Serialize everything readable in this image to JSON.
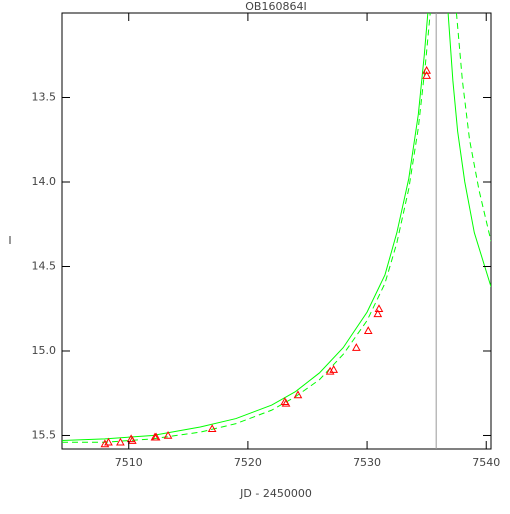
{
  "chart_data": {
    "type": "line",
    "title": "OB160864I",
    "xlabel": "JD - 2450000",
    "ylabel": "I",
    "xlim": [
      7504.4,
      7540.4
    ],
    "ylim": [
      15.58,
      13.0
    ],
    "xticks": [
      7510,
      7520,
      7530,
      7540
    ],
    "yticks": [
      13.5,
      {
        "value": 14.0,
        "label": "14.0"
      },
      14.5,
      {
        "value": 15.0,
        "label": "15.0"
      },
      15.5
    ],
    "vline": {
      "x": 7535.8,
      "color": "#999999"
    },
    "series": [
      {
        "color": "#00ff00",
        "style": "solid",
        "x": [
          7504.4,
          7508,
          7512,
          7516,
          7519,
          7522,
          7524,
          7526,
          7528,
          7530,
          7531.5,
          7532.5,
          7533.5,
          7534.3,
          7534.8,
          7535.1,
          null,
          7536.8,
          7537.2,
          7537.6,
          7538.2,
          7539.0,
          7540.4
        ],
        "values": [
          15.53,
          15.52,
          15.5,
          15.45,
          15.4,
          15.32,
          15.24,
          15.13,
          14.98,
          14.77,
          14.55,
          14.3,
          13.98,
          13.6,
          13.25,
          13.0,
          null,
          13.0,
          13.4,
          13.7,
          14.0,
          14.3,
          14.62
        ]
      },
      {
        "color": "#00ff00",
        "style": "dashed",
        "x": [
          7504.4,
          7508,
          7512,
          7516,
          7519,
          7522,
          7524,
          7526,
          7528,
          7530,
          7531.5,
          7532.5,
          7533.5,
          7534.3,
          7534.9,
          7535.3,
          null,
          7537.5,
          7538.0,
          7538.6,
          7539.4,
          7540.4
        ],
        "values": [
          15.54,
          15.54,
          15.52,
          15.48,
          15.43,
          15.35,
          15.27,
          15.17,
          15.02,
          14.82,
          14.6,
          14.36,
          14.04,
          13.68,
          13.3,
          13.0,
          null,
          13.0,
          13.4,
          13.75,
          14.05,
          14.35
        ]
      },
      {
        "type": "scatter",
        "marker": "triangle",
        "color": "#ff0000",
        "x": [
          7508.0,
          7508.3,
          7509.3,
          7510.2,
          7510.3,
          7512.2,
          7512.3,
          7513.3,
          7517.0,
          7523.1,
          7523.2,
          7524.2,
          7526.9,
          7527.2,
          7529.1,
          7530.1,
          7530.9,
          7531.0,
          7535.0,
          7535.0
        ],
        "values": [
          15.55,
          15.54,
          15.54,
          15.52,
          15.53,
          15.51,
          15.51,
          15.5,
          15.46,
          15.3,
          15.31,
          15.26,
          15.12,
          15.11,
          14.98,
          14.88,
          14.78,
          14.75,
          13.34,
          13.37
        ]
      }
    ]
  }
}
